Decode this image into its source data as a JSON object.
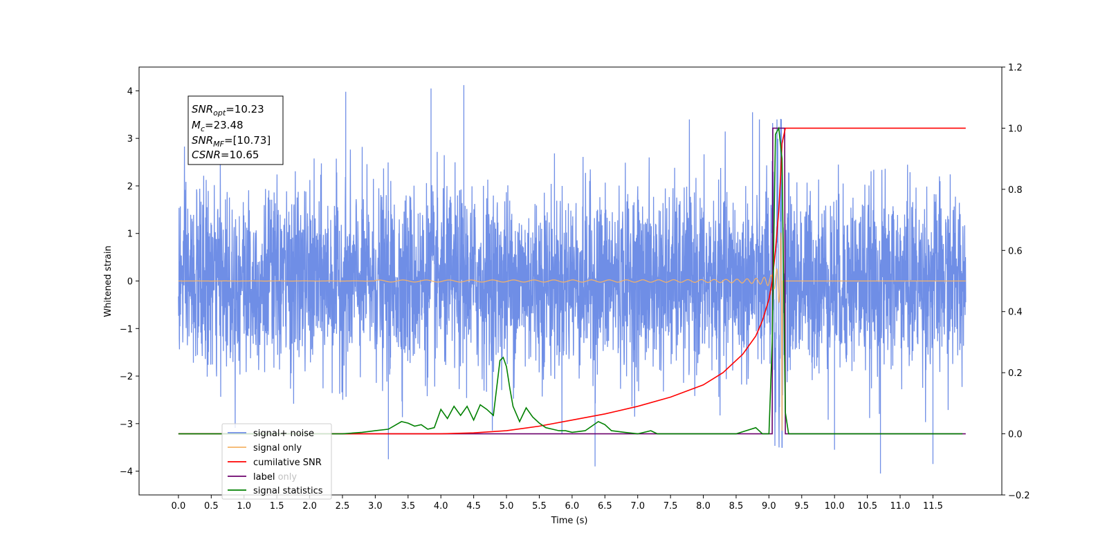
{
  "chart_data": {
    "type": "line",
    "xlabel": "Time (s)",
    "ylabel": "Whitened strain",
    "xlim": [
      -0.6,
      12.55
    ],
    "ylim_left": [
      -4.5,
      4.5
    ],
    "ylim_right": [
      -0.2,
      1.2
    ],
    "x_ticks": [
      0.0,
      0.5,
      1.0,
      1.5,
      2.0,
      2.5,
      3.0,
      3.5,
      4.0,
      4.5,
      5.0,
      5.5,
      6.0,
      6.5,
      7.0,
      7.5,
      8.0,
      8.5,
      9.0,
      9.5,
      10.0,
      10.5,
      11.0,
      11.5
    ],
    "x_tick_labels": [
      "0.0",
      "0.5",
      "1.0",
      "1.5",
      "2.0",
      "2.5",
      "3.0",
      "3.5",
      "4.0",
      "4.5",
      "5.0",
      "5.5",
      "6.0",
      "6.5",
      "7.0",
      "7.5",
      "8.0",
      "8.5",
      "9.0",
      "9.5",
      "10.0",
      "10.5",
      "11.0",
      "11.5"
    ],
    "y_left_ticks": [
      -4,
      -3,
      -2,
      -1,
      0,
      1,
      2,
      3,
      4
    ],
    "y_left_tick_labels": [
      "−4",
      "−3",
      "−2",
      "−1",
      "0",
      "1",
      "2",
      "3",
      "4"
    ],
    "y_right_ticks": [
      -0.2,
      0.0,
      0.2,
      0.4,
      0.6,
      0.8,
      1.0,
      1.2
    ],
    "y_right_tick_labels": [
      "−0.2",
      "0.0",
      "0.2",
      "0.4",
      "0.6",
      "0.8",
      "1.0",
      "1.2"
    ],
    "grid": false,
    "legend_position": "bottom-left",
    "stats_box": {
      "snr_opt_base": "SNR",
      "snr_opt_sub": "opt",
      "snr_opt_value": "=10.23",
      "mc_base": "M",
      "mc_sub": "c",
      "mc_value": "=23.48",
      "snr_mf_base": "SNR",
      "snr_mf_sub": "MF",
      "snr_mf_value": "=[10.73]",
      "csnr_base": "CSNR",
      "csnr_value": "=10.65"
    },
    "series": [
      {
        "name": "signal+ noise",
        "axis": "left",
        "color": "#6f8ee6",
        "x_range": [
          0.0,
          12.0
        ],
        "noise_band": [
          -2.6,
          2.6
        ],
        "peak_spikes": [
          {
            "x": 2.55,
            "y": 3.98
          },
          {
            "x": 3.85,
            "y": 4.05
          },
          {
            "x": 4.35,
            "y": 4.12
          },
          {
            "x": 10.7,
            "y": -4.05
          },
          {
            "x": 6.35,
            "y": -3.9
          },
          {
            "x": 3.2,
            "y": -3.75
          },
          {
            "x": 11.5,
            "y": -3.85
          },
          {
            "x": 10.0,
            "y": -3.55
          },
          {
            "x": 8.75,
            "y": 3.55
          }
        ]
      },
      {
        "name": "signal only",
        "axis": "left",
        "color": "#f5b266",
        "x_range": [
          0.0,
          12.0
        ],
        "chirp_peak_time": 9.18,
        "chirp_peak_amplitude": 3.2
      },
      {
        "name": "cumilative SNR",
        "axis": "right",
        "color": "#ff0000",
        "x": [
          0.0,
          3.0,
          4.0,
          4.5,
          5.0,
          5.5,
          6.0,
          6.5,
          7.0,
          7.5,
          8.0,
          8.3,
          8.6,
          8.8,
          8.9,
          9.0,
          9.05,
          9.1,
          9.15,
          9.18,
          9.2,
          9.25,
          12.0
        ],
        "y": [
          0.0,
          0.0,
          0.0,
          0.003,
          0.01,
          0.025,
          0.045,
          0.065,
          0.09,
          0.12,
          0.16,
          0.2,
          0.26,
          0.32,
          0.37,
          0.44,
          0.5,
          0.6,
          0.73,
          0.85,
          0.95,
          1.0,
          1.0
        ]
      },
      {
        "name": "label",
        "axis": "right",
        "color": "#6b006b",
        "x": [
          0.0,
          9.05,
          9.06,
          9.24,
          9.25,
          12.0
        ],
        "y": [
          0.0,
          0.0,
          1.0,
          1.0,
          0.0,
          0.0
        ]
      },
      {
        "name": "label only",
        "axis": "right",
        "color": "#800080",
        "hidden_behind_legend": true
      },
      {
        "name": "signal statistics",
        "axis": "right",
        "color": "#008000",
        "x": [
          0.0,
          2.5,
          2.8,
          3.0,
          3.2,
          3.4,
          3.5,
          3.6,
          3.7,
          3.8,
          3.9,
          4.0,
          4.1,
          4.2,
          4.3,
          4.4,
          4.5,
          4.6,
          4.7,
          4.8,
          4.9,
          4.95,
          5.0,
          5.05,
          5.1,
          5.2,
          5.3,
          5.4,
          5.5,
          5.6,
          5.7,
          5.8,
          5.9,
          6.0,
          6.2,
          6.4,
          6.5,
          6.6,
          6.8,
          7.0,
          7.2,
          7.3,
          7.5,
          8.0,
          8.5,
          8.8,
          8.85,
          8.9,
          9.0,
          9.05,
          9.1,
          9.15,
          9.2,
          9.25,
          9.3,
          11.95
        ],
        "y": [
          0.0,
          0.0,
          0.005,
          0.01,
          0.015,
          0.04,
          0.035,
          0.025,
          0.03,
          0.015,
          0.02,
          0.08,
          0.05,
          0.09,
          0.06,
          0.09,
          0.045,
          0.095,
          0.08,
          0.06,
          0.24,
          0.25,
          0.22,
          0.15,
          0.09,
          0.04,
          0.085,
          0.055,
          0.035,
          0.02,
          0.015,
          0.01,
          0.01,
          0.005,
          0.01,
          0.04,
          0.03,
          0.01,
          0.005,
          0.0,
          0.01,
          0.0,
          0.0,
          0.0,
          0.0,
          0.02,
          0.01,
          0.0,
          0.0,
          0.3,
          0.98,
          1.0,
          0.9,
          0.07,
          0.0,
          0.0
        ]
      }
    ]
  }
}
